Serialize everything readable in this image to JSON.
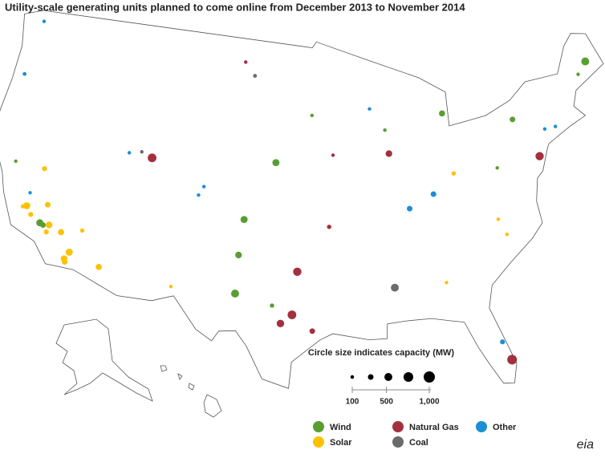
{
  "chart_data": {
    "type": "bubble-map",
    "title": "Utility-scale generating units planned to come online from December 2013 to November 2014",
    "size_legend_title": "Circle size indicates capacity (MW)",
    "size_legend_values": [
      100,
      250,
      500,
      750,
      1000
    ],
    "size_ticks": [
      100,
      500,
      {
        "value": 1000,
        "label": "1,000"
      }
    ],
    "logo": "eia",
    "series": [
      {
        "name": "Wind",
        "color": "#5a9e31",
        "points": [
          [
            -68.6,
            45.3,
            500
          ],
          [
            -69.6,
            44.6,
            100
          ],
          [
            -83.0,
            43.9,
            300
          ],
          [
            -76.6,
            42.7,
            250
          ],
          [
            -98.6,
            41.2,
            400
          ],
          [
            -101.2,
            37.3,
            400
          ],
          [
            -101.5,
            34.9,
            350
          ],
          [
            -101.6,
            32.3,
            500
          ],
          [
            -118.3,
            35.1,
            400
          ],
          [
            -118.0,
            35.0,
            250
          ],
          [
            -121.6,
            38.7,
            100
          ],
          [
            -95.3,
            44.4,
            100
          ],
          [
            -98.6,
            31.6,
            150
          ],
          [
            -78.8,
            39.7,
            100
          ],
          [
            -88.5,
            43.2,
            100
          ]
        ]
      },
      {
        "name": "Natural Gas",
        "color": "#a3303e",
        "points": [
          [
            -109.8,
            40.8,
            600
          ],
          [
            -101.9,
            47.9,
            100
          ],
          [
            -88.3,
            41.6,
            350
          ],
          [
            -74.9,
            39.9,
            550
          ],
          [
            -96.6,
            33.9,
            550
          ],
          [
            -97.0,
            31.0,
            600
          ],
          [
            -97.9,
            30.4,
            450
          ],
          [
            -95.4,
            29.9,
            250
          ],
          [
            -93.9,
            36.9,
            150
          ],
          [
            -80.3,
            26.8,
            750
          ],
          [
            -93.4,
            41.7,
            100
          ]
        ]
      },
      {
        "name": "Other",
        "color": "#1a8fd6",
        "points": [
          [
            -123.0,
            44.5,
            120
          ],
          [
            -84.7,
            38.6,
            250
          ],
          [
            -86.9,
            37.8,
            250
          ],
          [
            -80.8,
            28.1,
            200
          ],
          [
            -72.9,
            41.6,
            100
          ],
          [
            -122.6,
            48.3,
            100
          ],
          [
            -111.9,
            40.9,
            100
          ],
          [
            -104.9,
            39.3,
            100
          ],
          [
            -89.8,
            44.7,
            100
          ],
          [
            -119.7,
            36.9,
            100
          ],
          [
            -73.9,
            41.6,
            100
          ],
          [
            -105.3,
            38.7,
            100
          ]
        ]
      },
      {
        "name": "Solar",
        "color": "#fcc200",
        "points": [
          [
            -119.7,
            36.0,
            400
          ],
          [
            -119.2,
            35.5,
            200
          ],
          [
            -117.5,
            35.1,
            350
          ],
          [
            -116.4,
            34.8,
            300
          ],
          [
            -117.6,
            34.6,
            200
          ],
          [
            -115.4,
            33.6,
            400
          ],
          [
            -115.7,
            33.1,
            350
          ],
          [
            -115.6,
            32.9,
            250
          ],
          [
            -112.8,
            33.0,
            300
          ],
          [
            -118.0,
            36.4,
            250
          ],
          [
            -119.0,
            38.7,
            200
          ],
          [
            -120.0,
            35.9,
            150
          ],
          [
            -114.7,
            35.2,
            150
          ],
          [
            -82.7,
            39.8,
            150
          ],
          [
            -79.5,
            36.3,
            100
          ],
          [
            -84.5,
            32.6,
            100
          ],
          [
            -79.0,
            35.2,
            100
          ],
          [
            -106.8,
            32.4,
            100
          ]
        ]
      },
      {
        "name": "Coal",
        "color": "#6b6b6b",
        "points": [
          [
            -88.7,
            32.6,
            500
          ],
          [
            -100.9,
            47.0,
            120
          ],
          [
            -110.8,
            41.1,
            100
          ]
        ]
      }
    ]
  }
}
